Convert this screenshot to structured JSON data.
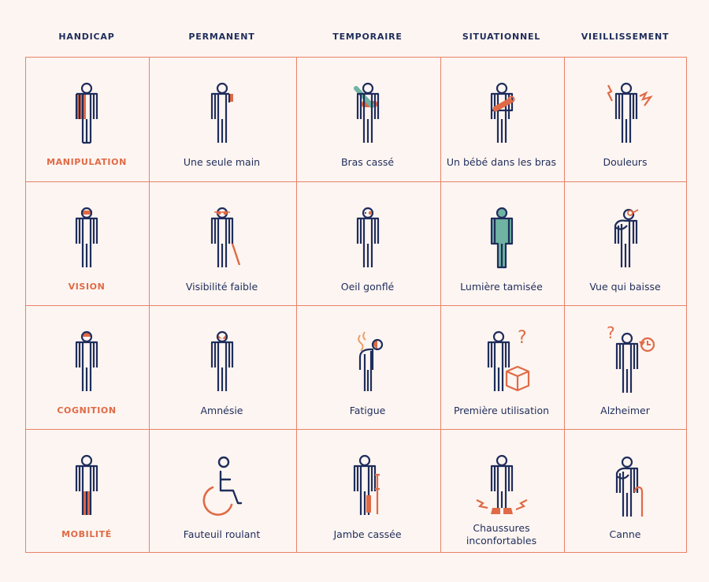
{
  "headers": [
    "HANDICAP",
    "PERMANENT",
    "TEMPORAIRE",
    "SITUATIONNEL",
    "VIEILLISSEMENT"
  ],
  "rows": [
    {
      "category": "MANIPULATION",
      "cells": [
        {
          "label": "Une seule main",
          "icon": "one-hand-icon"
        },
        {
          "label": "Bras cassé",
          "icon": "broken-arm-icon"
        },
        {
          "label": "Un bébé dans les bras",
          "icon": "holding-baby-icon"
        },
        {
          "label": "Douleurs",
          "icon": "pain-icon"
        }
      ]
    },
    {
      "category": "VISION",
      "cells": [
        {
          "label": "Visibilité faible",
          "icon": "low-vision-cane-icon"
        },
        {
          "label": "Oeil gonflé",
          "icon": "swollen-eye-icon"
        },
        {
          "label": "Lumière tamisée",
          "icon": "dim-light-icon"
        },
        {
          "label": "Vue qui baisse",
          "icon": "declining-sight-icon"
        }
      ]
    },
    {
      "category": "COGNITION",
      "cells": [
        {
          "label": "Amnésie",
          "icon": "amnesia-icon"
        },
        {
          "label": "Fatigue",
          "icon": "fatigue-icon"
        },
        {
          "label": "Première utilisation",
          "icon": "first-use-icon",
          "mark": "?"
        },
        {
          "label": "Alzheimer",
          "icon": "alzheimer-icon",
          "mark": "?"
        }
      ]
    },
    {
      "category": "MOBILITÉ",
      "cells": [
        {
          "label": "Fauteuil roulant",
          "icon": "wheelchair-icon"
        },
        {
          "label": "Jambe cassée",
          "icon": "broken-leg-crutch-icon"
        },
        {
          "label": "Chaussures inconfortables",
          "icon": "uncomfortable-shoes-icon"
        },
        {
          "label": "Canne",
          "icon": "walking-cane-icon"
        }
      ]
    }
  ],
  "colors": {
    "navy": "#1f2d5c",
    "orange": "#e06a46",
    "grid": "#e8826a",
    "teal": "#6fb3a3",
    "background": "#fdf5f1"
  }
}
